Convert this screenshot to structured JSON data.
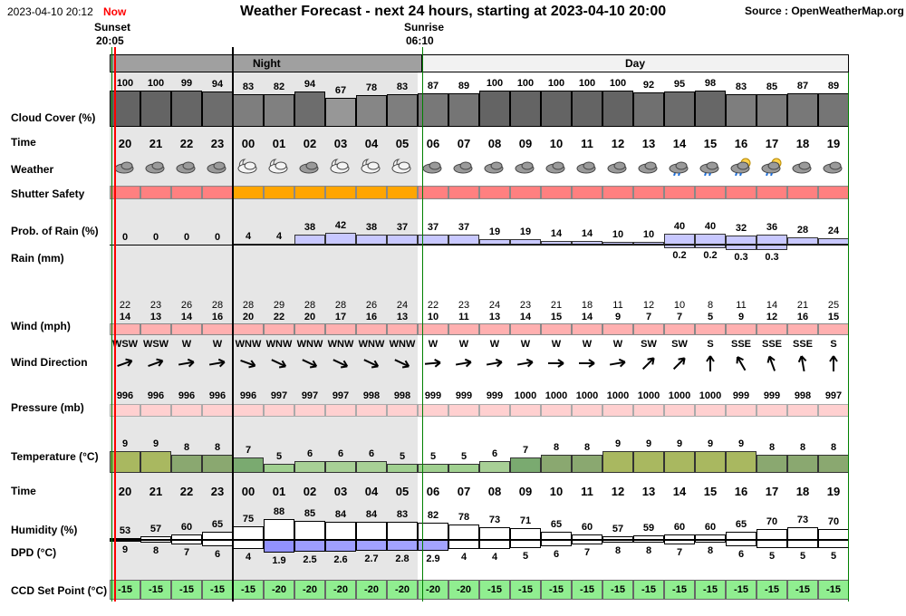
{
  "header": {
    "datetime": "2023-04-10 20:12",
    "now_label": "Now",
    "title": "Weather Forecast - next 24 hours, starting at 2023-04-10 20:00",
    "source": "Source : OpenWeatherMap.org",
    "sunset_label": "Sunset",
    "sunset_time": "20:05",
    "sunrise_label": "Sunrise",
    "sunrise_time": "06:10",
    "night_label": "Night",
    "day_label": "Day"
  },
  "labels": {
    "cloud": "Cloud Cover (%)",
    "time": "Time",
    "weather": "Weather",
    "shutter": "Shutter Safety",
    "prob_rain": "Prob. of Rain (%)",
    "rain": "Rain (mm)",
    "wind": "Wind (mph)",
    "wind_dir": "Wind Direction",
    "pressure": "Pressure (mb)",
    "temperature": "Temperature (°C)",
    "time2": "Time",
    "humidity": "Humidity (%)",
    "dpd": "DPD (°C)",
    "ccd": "CCD Set Point (°C)"
  },
  "hours": [
    "20",
    "21",
    "22",
    "23",
    "00",
    "01",
    "02",
    "03",
    "04",
    "05",
    "06",
    "07",
    "08",
    "09",
    "10",
    "11",
    "12",
    "13",
    "14",
    "15",
    "16",
    "17",
    "18",
    "19"
  ],
  "night_flags": [
    true,
    true,
    true,
    true,
    true,
    true,
    true,
    true,
    true,
    true,
    false,
    false,
    false,
    false,
    false,
    false,
    false,
    false,
    false,
    false,
    false,
    false,
    false,
    false
  ],
  "cloud_cover": [
    100,
    100,
    99,
    94,
    83,
    82,
    94,
    67,
    78,
    83,
    87,
    89,
    100,
    100,
    100,
    100,
    100,
    92,
    95,
    98,
    83,
    85,
    87,
    89
  ],
  "weather_icons": [
    "cloud-icon",
    "cloud-icon",
    "cloud-icon",
    "cloud-icon",
    "moon-cloud-icon",
    "moon-cloud-icon",
    "cloud-icon",
    "moon-cloud-icon",
    "moon-cloud-icon",
    "moon-cloud-icon",
    "cloud-icon",
    "cloud-icon",
    "cloud-icon",
    "cloud-icon",
    "cloud-icon",
    "cloud-icon",
    "cloud-icon",
    "cloud-icon",
    "rain-cloud-icon",
    "rain-cloud-icon",
    "sun-rain-cloud-icon",
    "sun-rain-cloud-icon",
    "cloud-icon",
    "cloud-icon"
  ],
  "shutter_safety": [
    "unsafe",
    "unsafe",
    "unsafe",
    "unsafe",
    "caution",
    "caution",
    "caution",
    "caution",
    "caution",
    "caution",
    "unsafe",
    "unsafe",
    "unsafe",
    "unsafe",
    "unsafe",
    "unsafe",
    "unsafe",
    "unsafe",
    "unsafe",
    "unsafe",
    "unsafe",
    "unsafe",
    "unsafe",
    "unsafe"
  ],
  "prob_rain": [
    0,
    0,
    0,
    0,
    4,
    4,
    38,
    42,
    38,
    37,
    37,
    37,
    19,
    19,
    14,
    14,
    10,
    10,
    40,
    40,
    32,
    36,
    28,
    24
  ],
  "rain_mm": [
    "",
    "",
    "",
    "",
    "",
    "",
    "",
    "",
    "",
    "",
    "",
    "",
    "",
    "",
    "",
    "",
    "",
    "",
    "0.2",
    "0.2",
    "0.3",
    "0.3",
    "",
    ""
  ],
  "wind_gust": [
    22,
    23,
    26,
    28,
    28,
    29,
    28,
    28,
    26,
    24,
    22,
    23,
    24,
    23,
    21,
    18,
    11,
    12,
    10,
    8,
    11,
    14,
    21,
    25
  ],
  "wind_speed": [
    14,
    13,
    14,
    16,
    20,
    22,
    20,
    17,
    16,
    13,
    10,
    11,
    13,
    14,
    15,
    14,
    9,
    7,
    7,
    5,
    9,
    12,
    16,
    15
  ],
  "wind_dir": [
    "WSW",
    "WSW",
    "W",
    "W",
    "WNW",
    "WNW",
    "WNW",
    "WNW",
    "WNW",
    "WNW",
    "W",
    "W",
    "W",
    "W",
    "W",
    "W",
    "W",
    "SW",
    "SW",
    "S",
    "SSE",
    "SSE",
    "SSE",
    "S"
  ],
  "wind_arrow_deg": [
    -20,
    -20,
    -10,
    -10,
    20,
    25,
    25,
    25,
    25,
    25,
    -5,
    -10,
    -10,
    -10,
    0,
    0,
    -10,
    -45,
    -45,
    -90,
    -120,
    -110,
    -100,
    -90
  ],
  "pressure": [
    996,
    996,
    996,
    996,
    996,
    997,
    997,
    997,
    998,
    998,
    999,
    999,
    999,
    1000,
    1000,
    1000,
    1000,
    1000,
    1000,
    1000,
    999,
    999,
    998,
    997
  ],
  "temperature": [
    9,
    9,
    8,
    8,
    7,
    5,
    6,
    6,
    6,
    5,
    5,
    5,
    6,
    7,
    8,
    8,
    9,
    9,
    9,
    9,
    9,
    8,
    8,
    8
  ],
  "humidity": [
    53,
    57,
    60,
    65,
    75,
    88,
    85,
    84,
    84,
    83,
    82,
    78,
    73,
    71,
    65,
    60,
    57,
    59,
    60,
    60,
    65,
    70,
    73,
    70
  ],
  "dpd": [
    9,
    8,
    7,
    6,
    4,
    1.9,
    2.5,
    2.6,
    2.7,
    2.8,
    2.9,
    4,
    4,
    5,
    6,
    7,
    8,
    8,
    7,
    8,
    6,
    5,
    5,
    5
  ],
  "ccd_setpoint": [
    -15,
    -15,
    -15,
    -15,
    -15,
    -20,
    -20,
    -20,
    -20,
    -20,
    -20,
    -20,
    -15,
    -15,
    -15,
    -15,
    -15,
    -15,
    -15,
    -15,
    -15,
    -15,
    -15,
    -15
  ],
  "colors": {
    "now_red": "#ff0000",
    "shutter_unsafe": "#ff8080",
    "shutter_caution": "#ffa500",
    "night_bg": "#e6e6e6",
    "night_header": "#a0a0a0",
    "sunrise_line": "#008000",
    "rain_bar": "#c8c8ff",
    "wind_bar": "#ffb0b0",
    "pressure_bar": "#ffd0d0",
    "ccd_bg": "#90ee90"
  }
}
